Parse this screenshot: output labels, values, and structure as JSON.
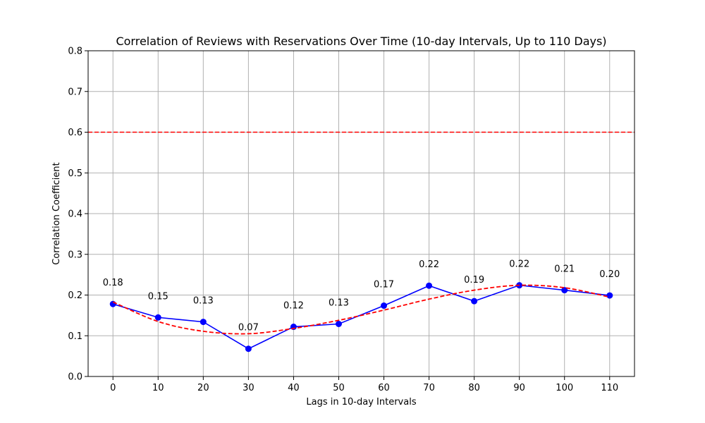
{
  "chart_data": {
    "type": "line",
    "title": "Correlation of Reviews with Reservations Over Time (10-day Intervals, Up to 110 Days)",
    "xlabel": "Lags in 10-day Intervals",
    "ylabel": "Correlation Coefficient",
    "x": [
      0,
      10,
      20,
      30,
      40,
      50,
      60,
      70,
      80,
      90,
      100,
      110
    ],
    "xlim": [
      -5.5,
      115.5
    ],
    "ylim": [
      0,
      0.8
    ],
    "xticks": [
      0,
      10,
      20,
      30,
      40,
      50,
      60,
      70,
      80,
      90,
      100,
      110
    ],
    "yticks": [
      0.0,
      0.1,
      0.2,
      0.3,
      0.4,
      0.5,
      0.6,
      0.7,
      0.8
    ],
    "ytick_labels": [
      "0.0",
      "0.1",
      "0.2",
      "0.3",
      "0.4",
      "0.5",
      "0.6",
      "0.7",
      "0.8"
    ],
    "grid": true,
    "series": [
      {
        "style": "solid-markers",
        "color": "#0000ff",
        "values": [
          0.178,
          0.145,
          0.134,
          0.068,
          0.122,
          0.129,
          0.174,
          0.223,
          0.185,
          0.224,
          0.212,
          0.199
        ],
        "labels": [
          "0.18",
          "0.15",
          "0.13",
          "0.07",
          "0.12",
          "0.13",
          "0.17",
          "0.22",
          "0.19",
          "0.22",
          "0.21",
          "0.20"
        ]
      },
      {
        "style": "dashed-smooth",
        "color": "#ff0000",
        "values": [
          0.183,
          0.135,
          0.111,
          0.105,
          0.118,
          0.138,
          0.163,
          0.19,
          0.212,
          0.224,
          0.218,
          0.195
        ]
      }
    ],
    "hlines": [
      {
        "y": 0.6,
        "style": "dashed",
        "color": "#ff0000"
      }
    ]
  }
}
